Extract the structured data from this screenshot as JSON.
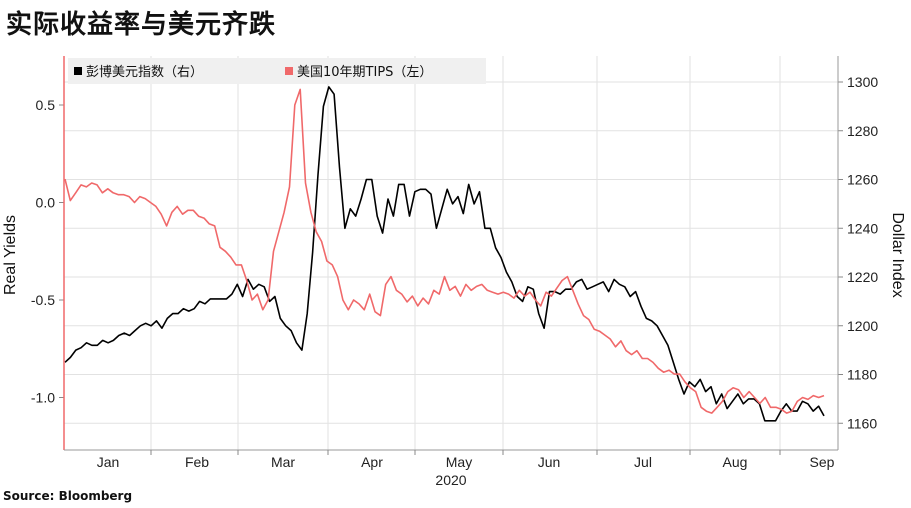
{
  "title": "实际收益率与美元齐跌",
  "source": "Source: Bloomberg",
  "chart_data": {
    "type": "line",
    "year_label": "2020",
    "months": [
      "Jan",
      "Feb",
      "Mar",
      "Apr",
      "May",
      "Jun",
      "Jul",
      "Aug",
      "Sep"
    ],
    "left_axis": {
      "label": "Real Yields",
      "ticks": [
        "0.5",
        "0.0",
        "-0.5",
        "-1.0"
      ],
      "tick_values": [
        0.5,
        0.0,
        -0.5,
        -1.0
      ],
      "range": [
        -1.25,
        0.6
      ]
    },
    "right_axis": {
      "label": "Dollar Index",
      "ticks": [
        "1300",
        "1280",
        "1260",
        "1240",
        "1220",
        "1200",
        "1180",
        "1160"
      ],
      "tick_values": [
        1300,
        1280,
        1260,
        1240,
        1220,
        1200,
        1180,
        1160
      ],
      "range": [
        1156,
        1306
      ]
    },
    "grid": true,
    "legend_position": "top-left",
    "series": [
      {
        "name": "彭博美元指数（右）",
        "axis": "right",
        "color": "#000000",
        "values": [
          1185,
          1187,
          1190,
          1191,
          1193,
          1192,
          1192,
          1194,
          1193,
          1194,
          1196,
          1197,
          1196,
          1198,
          1200,
          1201,
          1200,
          1202,
          1199,
          1203,
          1205,
          1205,
          1207,
          1206,
          1207,
          1210,
          1209,
          1211,
          1211,
          1211,
          1211,
          1213,
          1217,
          1212,
          1219,
          1215,
          1217,
          1216,
          1210,
          1212,
          1203,
          1200,
          1198,
          1193,
          1190,
          1205,
          1230,
          1262,
          1290,
          1298,
          1295,
          1265,
          1240,
          1248,
          1245,
          1252,
          1260,
          1260,
          1245,
          1238,
          1252,
          1245,
          1258,
          1258,
          1245,
          1255,
          1256,
          1256,
          1254,
          1240,
          1248,
          1256,
          1250,
          1253,
          1246,
          1258,
          1250,
          1255,
          1240,
          1240,
          1232,
          1228,
          1222,
          1218,
          1212,
          1210,
          1216,
          1215,
          1205,
          1199,
          1214,
          1214,
          1213,
          1215,
          1215,
          1218,
          1219,
          1215,
          1216,
          1217,
          1218,
          1214,
          1219,
          1217,
          1216,
          1212,
          1214,
          1208,
          1203,
          1202,
          1200,
          1196,
          1192,
          1185,
          1178,
          1172,
          1177,
          1175,
          1178,
          1173,
          1175,
          1168,
          1172,
          1166,
          1169,
          1172,
          1168,
          1170,
          1170,
          1168,
          1161,
          1161,
          1161,
          1165,
          1168,
          1165,
          1165,
          1169,
          1168,
          1165,
          1167,
          1163
        ]
      },
      {
        "name": "美国10年期TIPS（左）",
        "axis": "left",
        "color": "#f0696a",
        "values": [
          0.12,
          0.01,
          0.05,
          0.09,
          0.08,
          0.1,
          0.09,
          0.05,
          0.07,
          0.05,
          0.04,
          0.04,
          0.03,
          0.0,
          0.03,
          0.02,
          0.0,
          -0.02,
          -0.06,
          -0.12,
          -0.05,
          -0.02,
          -0.06,
          -0.04,
          -0.04,
          -0.07,
          -0.08,
          -0.11,
          -0.12,
          -0.23,
          -0.25,
          -0.28,
          -0.32,
          -0.32,
          -0.4,
          -0.5,
          -0.47,
          -0.55,
          -0.5,
          -0.25,
          -0.15,
          -0.05,
          0.08,
          0.5,
          0.58,
          0.1,
          -0.05,
          -0.15,
          -0.2,
          -0.3,
          -0.32,
          -0.38,
          -0.5,
          -0.55,
          -0.5,
          -0.52,
          -0.55,
          -0.47,
          -0.56,
          -0.58,
          -0.42,
          -0.38,
          -0.45,
          -0.47,
          -0.51,
          -0.48,
          -0.53,
          -0.49,
          -0.52,
          -0.45,
          -0.47,
          -0.38,
          -0.45,
          -0.43,
          -0.48,
          -0.42,
          -0.45,
          -0.43,
          -0.42,
          -0.45,
          -0.46,
          -0.47,
          -0.46,
          -0.47,
          -0.49,
          -0.45,
          -0.48,
          -0.46,
          -0.5,
          -0.53,
          -0.46,
          -0.48,
          -0.44,
          -0.4,
          -0.38,
          -0.45,
          -0.52,
          -0.58,
          -0.6,
          -0.65,
          -0.66,
          -0.68,
          -0.7,
          -0.74,
          -0.71,
          -0.76,
          -0.78,
          -0.76,
          -0.8,
          -0.8,
          -0.82,
          -0.85,
          -0.87,
          -0.86,
          -0.88,
          -0.88,
          -0.92,
          -0.95,
          -0.97,
          -1.05,
          -1.07,
          -1.08,
          -1.05,
          -1.02,
          -0.97,
          -0.95,
          -0.96,
          -1.0,
          -0.97,
          -1.0,
          -1.03,
          -1.0,
          -1.05,
          -1.05,
          -1.06,
          -1.08,
          -1.07,
          -1.02,
          -1.0,
          -1.01,
          -0.99,
          -1.0,
          -0.99
        ]
      }
    ]
  }
}
